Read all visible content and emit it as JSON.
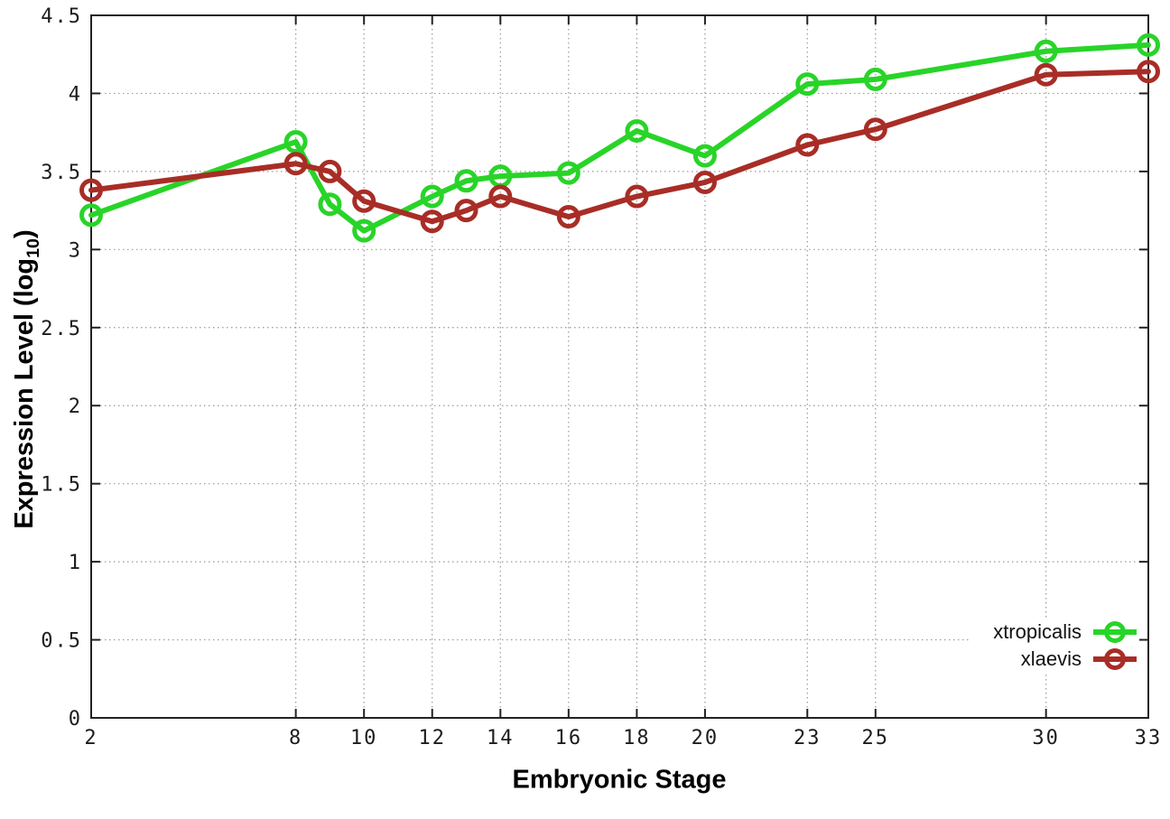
{
  "chart": {
    "xlabel": "Embryonic Stage",
    "ylabel_main": "Expression Level (log",
    "ylabel_sub": "10",
    "ylabel_close": ")",
    "background_color": "#ffffff",
    "border_color": "#222222",
    "grid_color": "#999999",
    "tick_text_color": "#1c1c1c"
  },
  "chart_data": {
    "type": "line",
    "title": "",
    "xlabel": "Embryonic Stage",
    "ylabel": "Expression Level (log10)",
    "xlim": [
      2,
      33
    ],
    "ylim": [
      0,
      4.5
    ],
    "x_ticks": [
      2,
      8,
      10,
      12,
      14,
      16,
      18,
      20,
      23,
      25,
      30,
      33
    ],
    "y_ticks": [
      0,
      0.5,
      1,
      1.5,
      2,
      2.5,
      3,
      3.5,
      4,
      4.5
    ],
    "grid": true,
    "legend_position": "bottom-right",
    "marker": "open-circle",
    "x": [
      2,
      8,
      9,
      10,
      12,
      13,
      14,
      16,
      18,
      20,
      23,
      25,
      30,
      33
    ],
    "series": [
      {
        "name": "xtropicalis",
        "color": "#28d428",
        "values": [
          3.22,
          3.69,
          3.29,
          3.12,
          3.34,
          3.44,
          3.47,
          3.49,
          3.76,
          3.6,
          4.06,
          4.09,
          4.27,
          4.31
        ]
      },
      {
        "name": "xlaevis",
        "color": "#a82d26",
        "values": [
          3.38,
          3.55,
          3.5,
          3.31,
          3.18,
          3.25,
          3.34,
          3.21,
          3.34,
          3.43,
          3.67,
          3.77,
          4.12,
          4.14
        ]
      }
    ]
  }
}
